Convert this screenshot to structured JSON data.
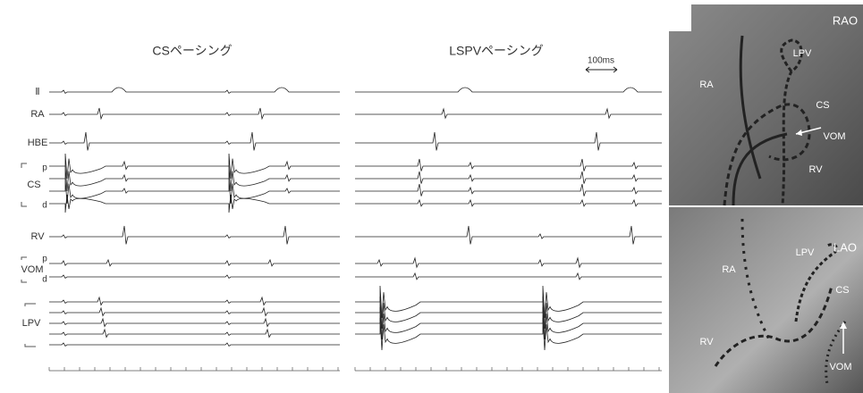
{
  "panels": [
    {
      "title": "CSペーシング"
    },
    {
      "title": "LSPVペーシング"
    }
  ],
  "scale_bar": "100ms",
  "channel_labels": [
    "Ⅱ",
    "RA",
    "HBE",
    "CS",
    "RV",
    "VOM",
    "LPV"
  ],
  "pole_labels": {
    "cs_proximal": "p",
    "cs_distal": "d",
    "vom_proximal": "p",
    "vom_distal": "d"
  },
  "fluoro": [
    {
      "view": "RAO",
      "labels": [
        "RA",
        "LPV",
        "CS",
        "VOM",
        "RV"
      ]
    },
    {
      "view": "LAO",
      "labels": [
        "LPV",
        "RA",
        "CS",
        "RV",
        "VOM"
      ]
    }
  ]
}
